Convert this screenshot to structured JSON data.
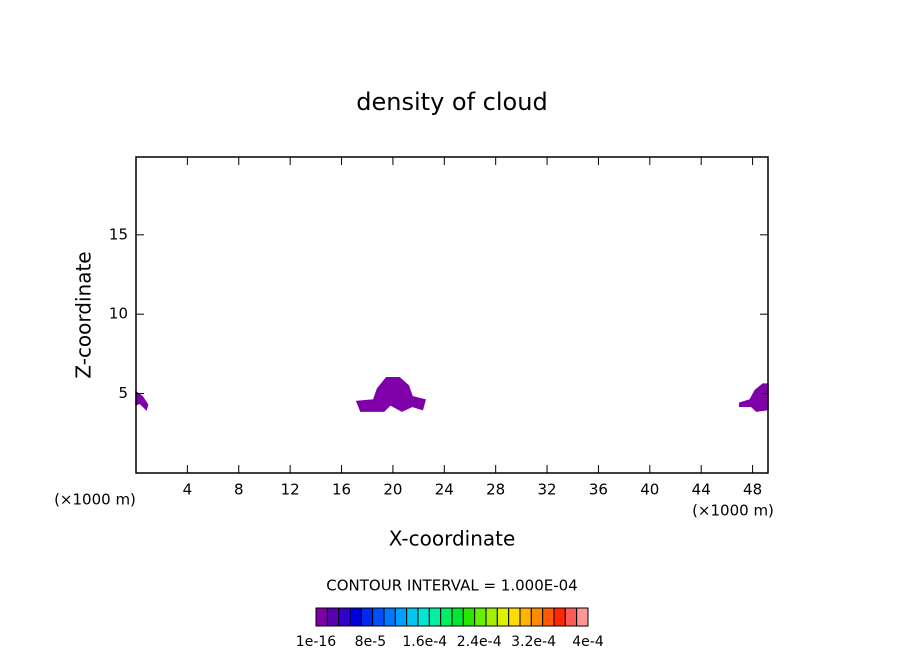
{
  "chart_data": {
    "type": "contour",
    "title": "density of cloud",
    "x_label": "X-coordinate",
    "y_label": "Z-coordinate",
    "x_unit": "(×1000 m)",
    "y_unit": "(×1000 m)",
    "xlim": [
      0,
      49.2
    ],
    "ylim": [
      0,
      19.9
    ],
    "xticks": [
      4,
      8,
      12,
      16,
      20,
      24,
      28,
      32,
      36,
      40,
      44,
      48
    ],
    "yticks": [
      5,
      10,
      15
    ],
    "series": [
      {
        "color": "#7f00a8",
        "x": [
          0,
          0.5,
          0.9,
          0.8,
          0.3,
          0
        ],
        "values": [
          5.1,
          4.8,
          4.3,
          4.0,
          4.4,
          4.3
        ]
      },
      {
        "color": "#7f00a8",
        "x": [
          17.2,
          18.5,
          18.8,
          19.5,
          20.5,
          21.2,
          21.5,
          22.5,
          22.3,
          21.5,
          20.7,
          19.8,
          19.3,
          17.5
        ],
        "values": [
          4.5,
          4.6,
          5.3,
          6.0,
          6.0,
          5.5,
          4.8,
          4.6,
          4.0,
          4.2,
          3.9,
          4.3,
          3.9,
          3.9
        ]
      },
      {
        "color": "#7f00a8",
        "x": [
          47.0,
          47.8,
          48.2,
          48.8,
          49.2,
          49.2,
          48.3,
          47.9,
          47.0
        ],
        "values": [
          4.4,
          4.6,
          5.2,
          5.6,
          5.6,
          4.0,
          3.9,
          4.2,
          4.2
        ]
      }
    ],
    "contour_interval": "CONTOUR INTERVAL = 1.000E-04",
    "colorbar": {
      "lim": [
        1e-16,
        0.0004
      ],
      "colors": [
        "#7f00a8",
        "#5a00b4",
        "#3200c8",
        "#0000dc",
        "#0028f0",
        "#0050ff",
        "#0078ff",
        "#00a0ff",
        "#00c8f0",
        "#00e6d2",
        "#00f0a0",
        "#00f064",
        "#00e632",
        "#28e600",
        "#64f000",
        "#a0f000",
        "#dcf000",
        "#ffdc00",
        "#ffb400",
        "#ff8c00",
        "#ff5a00",
        "#ff2800",
        "#ff5a5a",
        "#ff9696"
      ],
      "ticks": [
        {
          "value": 1e-16,
          "label": "1e-16"
        },
        {
          "value": 8e-05,
          "label": "8e-5"
        },
        {
          "value": 0.00016,
          "label": "1.6e-4"
        },
        {
          "value": 0.00024,
          "label": "2.4e-4"
        },
        {
          "value": 0.00032,
          "label": "3.2e-4"
        },
        {
          "value": 0.0004,
          "label": "4e-4"
        }
      ]
    }
  }
}
